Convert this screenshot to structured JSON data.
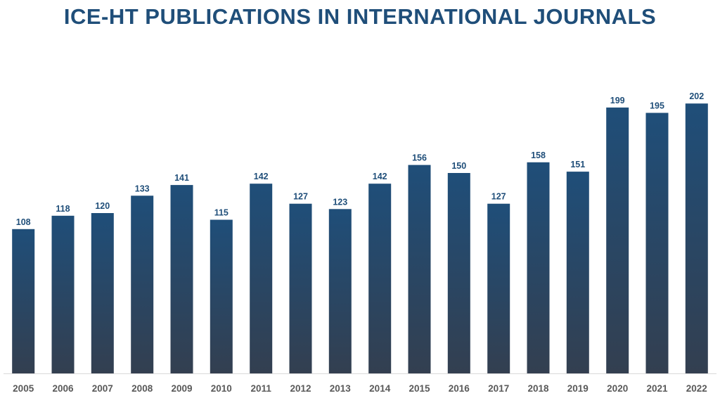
{
  "chart_data": {
    "type": "bar",
    "title": "ICE-HT PUBLICATIONS IN INTERNATIONAL JOURNALS",
    "xlabel": "",
    "ylabel": "",
    "categories": [
      "2005",
      "2006",
      "2007",
      "2008",
      "2009",
      "2010",
      "2011",
      "2012",
      "2013",
      "2014",
      "2015",
      "2016",
      "2017",
      "2018",
      "2019",
      "2020",
      "2021",
      "2022"
    ],
    "values": [
      108,
      118,
      120,
      133,
      141,
      115,
      142,
      127,
      123,
      142,
      156,
      150,
      127,
      158,
      151,
      199,
      195,
      202
    ],
    "ylim": [
      0,
      205
    ],
    "grid": false,
    "legend": "none",
    "data_labels": true,
    "colors": {
      "bar_top": "#1f4e79",
      "bar_bottom": "#333f50",
      "label": "#1f4e79",
      "tick": "#595959",
      "baseline": "#d9d9d9"
    }
  }
}
